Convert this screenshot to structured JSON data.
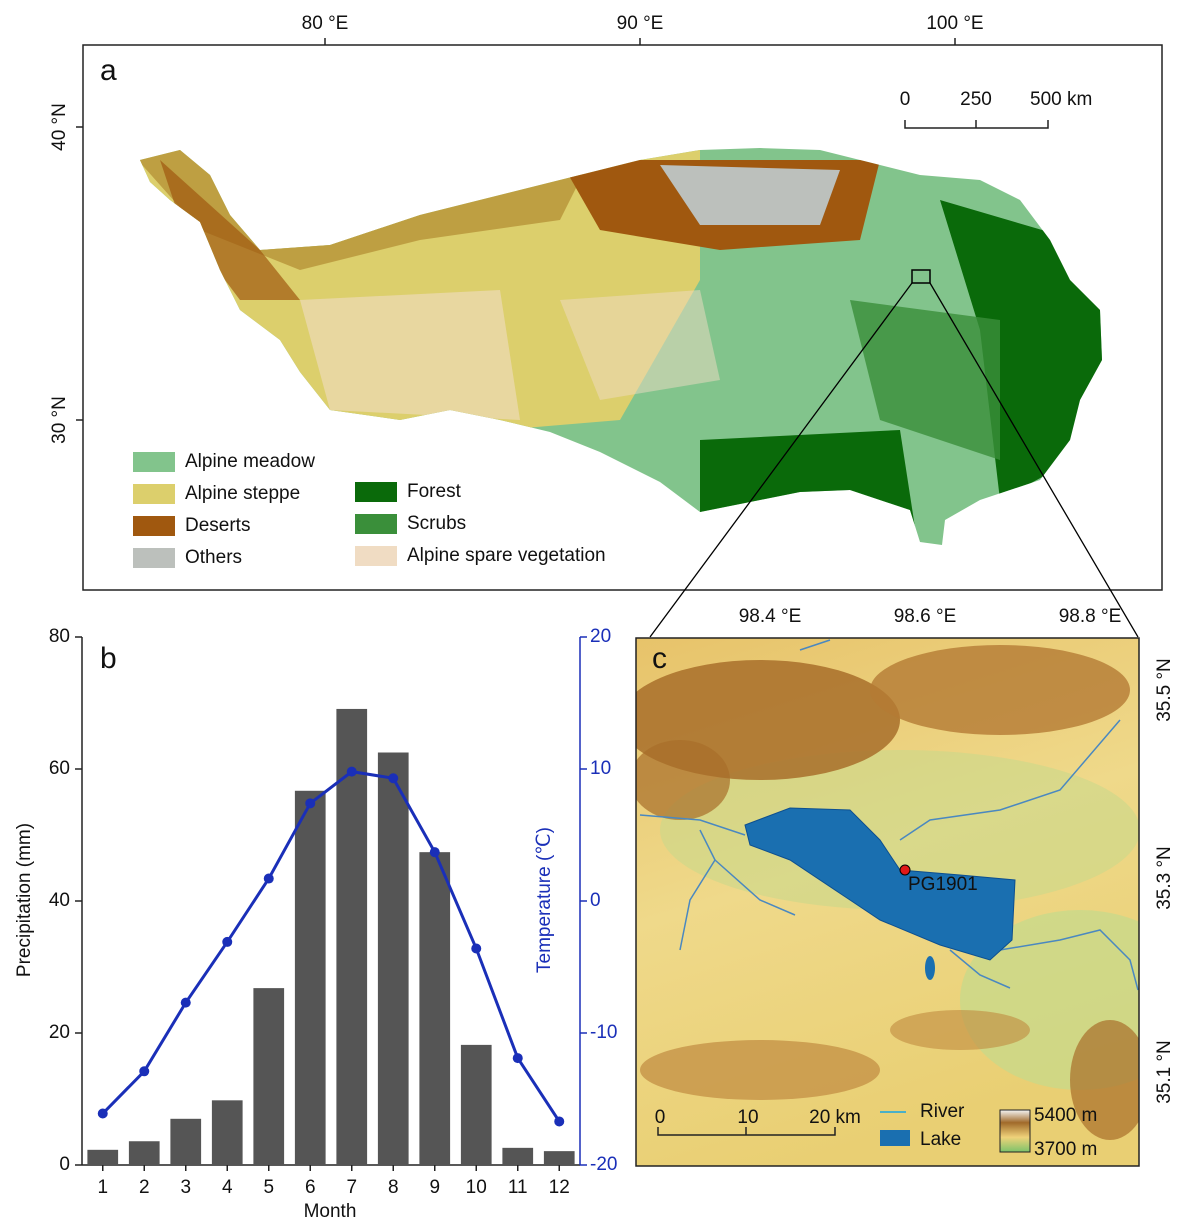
{
  "map_a": {
    "panel_label": "a",
    "lon_labels": [
      "80 °E",
      "90 °E",
      "100 °E"
    ],
    "lat_labels": [
      "40 °N",
      "30 °N"
    ],
    "scale_labels": [
      "0",
      "250",
      "500 km"
    ],
    "legend": [
      "Alpine meadow",
      "Alpine steppe",
      "Deserts",
      "Others",
      "Forest",
      "Scrubs",
      "Alpine spare vegetation"
    ]
  },
  "chart_data": {
    "type": "bar",
    "panel_label": "b",
    "x_label": "Month",
    "y_label": "Precipitation (mm)",
    "y2_label": "Temperature (℃)",
    "categories": [
      "1",
      "2",
      "3",
      "4",
      "5",
      "6",
      "7",
      "8",
      "9",
      "10",
      "11",
      "12"
    ],
    "series": [
      {
        "type": "bar",
        "color": "#555555",
        "values": [
          2.3,
          3.6,
          7.0,
          9.8,
          26.8,
          56.7,
          69.1,
          62.5,
          47.4,
          18.2,
          2.6,
          2.1
        ]
      },
      {
        "type": "line",
        "axis": "y2",
        "color": "#1a2fb8",
        "values": [
          -16.1,
          -12.9,
          -7.7,
          -3.1,
          1.7,
          7.4,
          9.8,
          9.3,
          3.7,
          -3.6,
          -11.9,
          -16.7
        ]
      }
    ],
    "ylim": [
      0,
      80
    ],
    "yticks": [
      0,
      20,
      40,
      60,
      80
    ],
    "y2lim": [
      -20,
      20
    ],
    "y2ticks": [
      -20,
      -10,
      0,
      10,
      20
    ]
  },
  "map_c": {
    "panel_label": "c",
    "lon_labels": [
      "98.4 °E",
      "98.6 °E",
      "98.8 °E"
    ],
    "lat_labels": [
      "35.5 °N",
      "35.3 °N",
      "35.1 °N"
    ],
    "site_label": "PG1901",
    "scale_labels": [
      "0",
      "10",
      "20 km"
    ],
    "legend": [
      "River",
      "Lake"
    ],
    "elevation_labels": [
      "5400 m",
      "3700 m"
    ]
  }
}
